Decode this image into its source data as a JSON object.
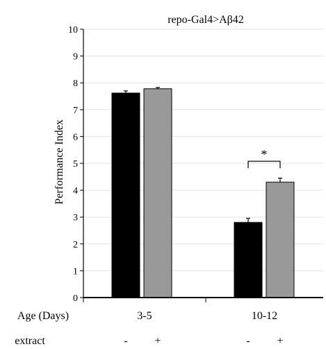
{
  "chart_data": {
    "type": "bar",
    "title": "repo-Gal4>Aβ42",
    "ylabel": "Performance Index",
    "ylim": [
      0,
      10
    ],
    "yticks": [
      0,
      1,
      2,
      3,
      4,
      5,
      6,
      7,
      8,
      9,
      10
    ],
    "grid": true,
    "x_row_label": "Age (Days)",
    "condition_row_label": "extract",
    "groups": [
      {
        "category": "3-5",
        "bars": [
          {
            "condition": "-",
            "value": 7.62,
            "error": 0.08,
            "color": "#000000"
          },
          {
            "condition": "+",
            "value": 7.78,
            "error": 0.05,
            "color": "#999999"
          }
        ]
      },
      {
        "category": "10-12",
        "bars": [
          {
            "condition": "-",
            "value": 2.8,
            "error": 0.15,
            "color": "#000000"
          },
          {
            "condition": "+",
            "value": 4.3,
            "error": 0.15,
            "color": "#999999"
          }
        ],
        "significance": "*"
      }
    ]
  }
}
